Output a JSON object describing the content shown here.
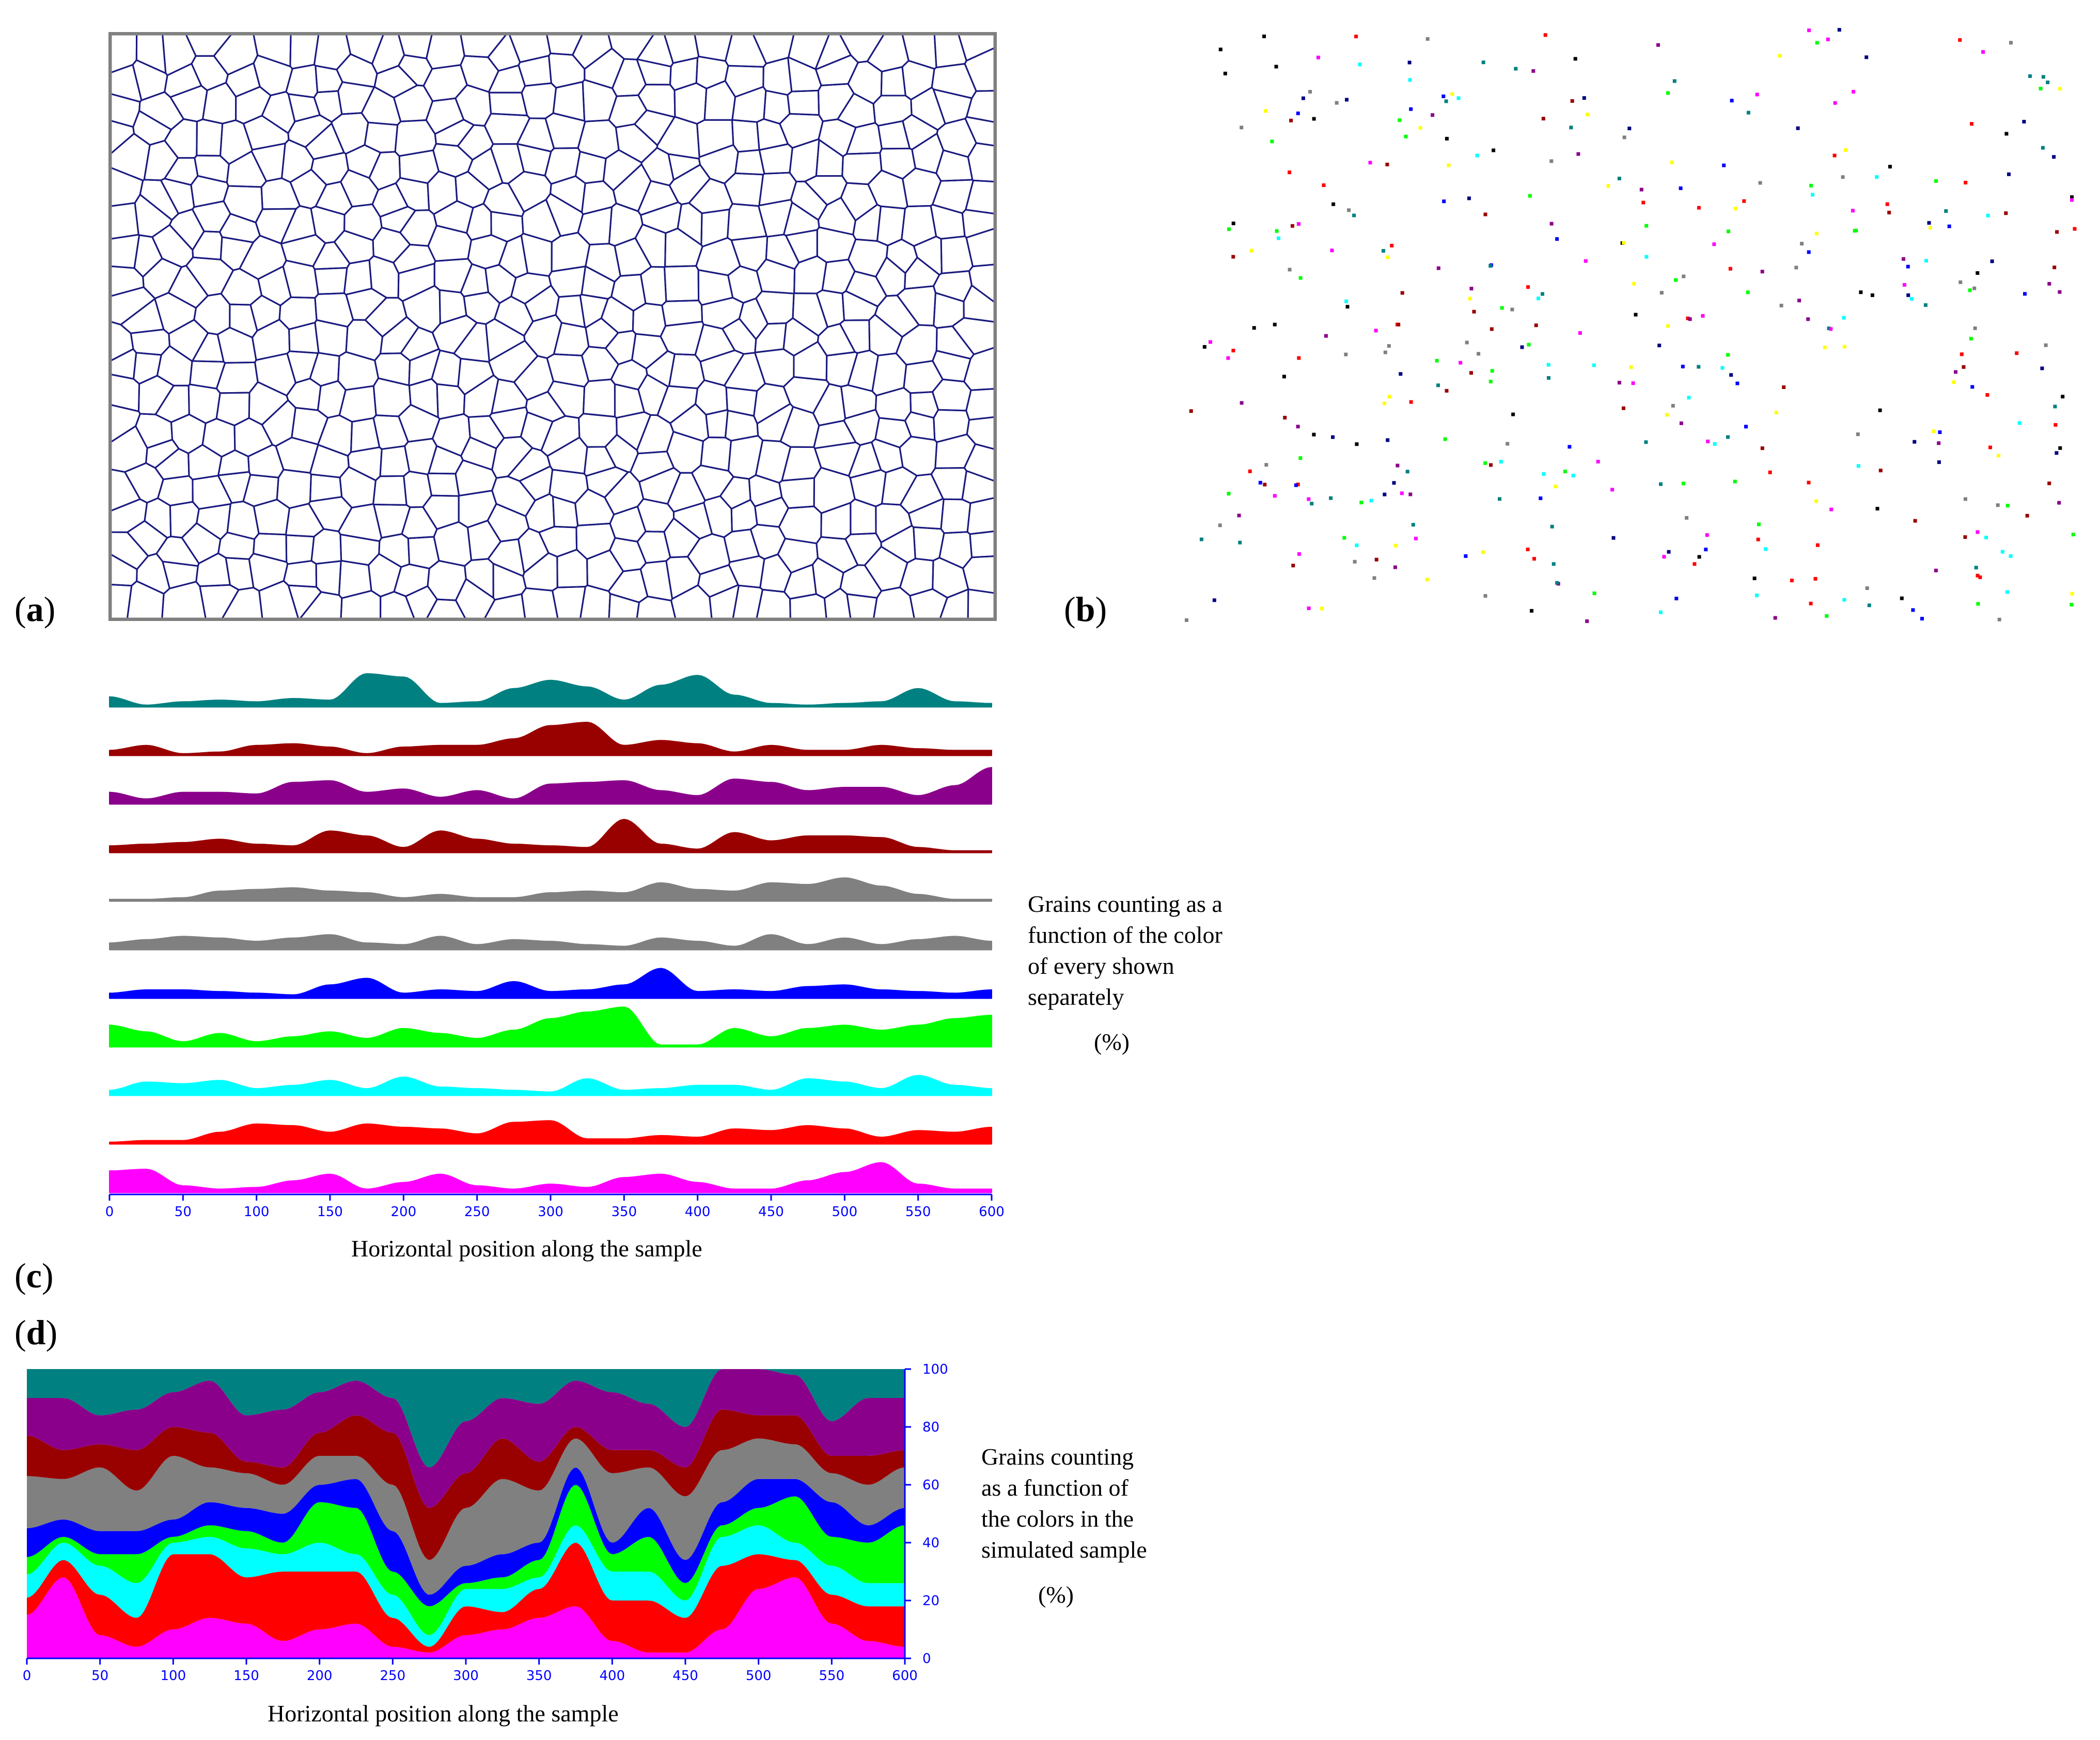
{
  "panels": {
    "a": "a",
    "b": "b",
    "c": "c",
    "d": "d"
  },
  "colors": {
    "boundary": "#1a1a80",
    "frame": "#808080",
    "tick": "#0000ff",
    "teal": "#008080",
    "darkred": "#990000",
    "purple": "#8b008b",
    "gray": "#808080",
    "blue": "#0000ff",
    "green": "#00ff00",
    "cyan": "#00ffff",
    "red": "#ff0000",
    "magenta": "#ff00ff"
  },
  "chart_data": [
    {
      "id": "c",
      "type": "area",
      "xlabel": "Horizontal position along the sample",
      "side_note": "Grains counting as a\nfunction of the color\nof every shown\nseparately",
      "unit": "(%)",
      "xlim": [
        0,
        600
      ],
      "x_ticks": [
        0,
        50,
        100,
        150,
        200,
        250,
        300,
        350,
        400,
        450,
        500,
        550,
        600
      ],
      "x": [
        0,
        25,
        50,
        75,
        100,
        125,
        150,
        175,
        200,
        225,
        250,
        275,
        300,
        325,
        350,
        375,
        400,
        425,
        450,
        475,
        500,
        525,
        550,
        575,
        600
      ],
      "series": [
        {
          "color": "teal",
          "values": [
            6,
            1,
            3,
            4,
            3,
            5,
            4,
            20,
            18,
            2,
            3,
            11,
            16,
            12,
            4,
            13,
            19,
            7,
            2,
            1,
            2,
            3,
            11,
            3,
            2
          ]
        },
        {
          "color": "darkred",
          "values": [
            3,
            6,
            1,
            2,
            6,
            7,
            5,
            1,
            5,
            6,
            6,
            10,
            18,
            20,
            6,
            9,
            7,
            2,
            6,
            3,
            3,
            6,
            4,
            3,
            3
          ]
        },
        {
          "color": "purple",
          "values": [
            7,
            3,
            7,
            7,
            6,
            13,
            14,
            7,
            9,
            4,
            8,
            3,
            12,
            13,
            14,
            8,
            5,
            15,
            13,
            8,
            10,
            10,
            5,
            11,
            22
          ]
        },
        {
          "color": "darkred",
          "values": [
            4,
            5,
            6,
            8,
            5,
            4,
            13,
            10,
            3,
            13,
            8,
            5,
            4,
            3,
            20,
            5,
            2,
            12,
            7,
            10,
            10,
            9,
            3,
            1,
            1
          ]
        },
        {
          "color": "gray",
          "values": [
            1,
            1,
            2,
            6,
            7,
            8,
            6,
            5,
            2,
            4,
            2,
            2,
            5,
            6,
            5,
            11,
            7,
            6,
            11,
            10,
            14,
            9,
            4,
            1,
            1
          ]
        },
        {
          "color": "gray",
          "values": [
            4,
            6,
            8,
            7,
            5,
            7,
            9,
            4,
            3,
            8,
            3,
            6,
            5,
            3,
            2,
            7,
            5,
            2,
            9,
            3,
            7,
            3,
            6,
            8,
            5
          ]
        },
        {
          "color": "blue",
          "values": [
            3,
            5,
            5,
            4,
            3,
            2,
            8,
            12,
            3,
            5,
            4,
            10,
            4,
            5,
            8,
            18,
            4,
            5,
            4,
            7,
            8,
            5,
            4,
            3,
            5
          ]
        },
        {
          "color": "green",
          "values": [
            13,
            9,
            3,
            8,
            3,
            6,
            9,
            5,
            11,
            8,
            5,
            10,
            17,
            21,
            24,
            1,
            1,
            11,
            6,
            11,
            13,
            10,
            13,
            17,
            19
          ]
        },
        {
          "color": "cyan",
          "values": [
            3,
            8,
            7,
            9,
            4,
            6,
            9,
            4,
            11,
            5,
            4,
            3,
            2,
            10,
            3,
            4,
            6,
            6,
            3,
            10,
            8,
            4,
            12,
            6,
            4
          ]
        },
        {
          "color": "red",
          "values": [
            1,
            2,
            2,
            7,
            12,
            11,
            7,
            12,
            10,
            9,
            6,
            13,
            14,
            3,
            3,
            5,
            4,
            9,
            8,
            11,
            9,
            4,
            8,
            7,
            10
          ]
        },
        {
          "color": "magenta",
          "values": [
            13,
            14,
            4,
            2,
            3,
            7,
            11,
            2,
            6,
            11,
            4,
            2,
            5,
            3,
            9,
            11,
            6,
            2,
            2,
            7,
            12,
            18,
            5,
            2,
            2
          ]
        }
      ]
    },
    {
      "id": "d",
      "type": "area",
      "stacked": true,
      "xlabel": "Horizontal position along the sample",
      "side_note": "Grains counting\nas a function of\nthe colors in the\nsimulated sample",
      "unit": "(%)",
      "xlim": [
        0,
        600
      ],
      "ylim": [
        0,
        100
      ],
      "x_ticks": [
        0,
        50,
        100,
        150,
        200,
        250,
        300,
        350,
        400,
        450,
        500,
        550,
        600
      ],
      "y_ticks": [
        0,
        20,
        40,
        60,
        80,
        100
      ],
      "x": [
        0,
        25,
        50,
        75,
        100,
        125,
        150,
        175,
        200,
        225,
        250,
        275,
        300,
        325,
        350,
        375,
        400,
        425,
        450,
        475,
        500,
        525,
        550,
        575,
        600
      ],
      "series_order_bottom_to_top": [
        "magenta",
        "red",
        "cyan",
        "green",
        "blue",
        "gray",
        "darkred",
        "purple",
        "teal"
      ],
      "series": [
        {
          "color": "magenta",
          "values": [
            15,
            28,
            8,
            4,
            10,
            14,
            12,
            6,
            10,
            12,
            4,
            2,
            8,
            10,
            14,
            18,
            6,
            2,
            2,
            10,
            24,
            28,
            12,
            6,
            4
          ]
        },
        {
          "color": "red",
          "values": [
            6,
            6,
            14,
            10,
            26,
            22,
            16,
            24,
            20,
            18,
            10,
            2,
            10,
            6,
            10,
            22,
            14,
            18,
            12,
            22,
            12,
            6,
            10,
            12,
            14
          ]
        },
        {
          "color": "cyan",
          "values": [
            8,
            6,
            10,
            12,
            4,
            6,
            10,
            6,
            10,
            6,
            8,
            4,
            6,
            8,
            4,
            6,
            10,
            10,
            6,
            10,
            10,
            6,
            10,
            8,
            8
          ]
        },
        {
          "color": "green",
          "values": [
            6,
            2,
            4,
            10,
            2,
            4,
            6,
            4,
            14,
            16,
            8,
            10,
            2,
            4,
            6,
            14,
            6,
            12,
            6,
            4,
            6,
            16,
            10,
            14,
            20
          ]
        },
        {
          "color": "blue",
          "values": [
            10,
            6,
            8,
            8,
            6,
            8,
            8,
            10,
            6,
            10,
            14,
            4,
            6,
            8,
            6,
            6,
            4,
            10,
            8,
            8,
            10,
            6,
            12,
            6,
            6
          ]
        },
        {
          "color": "gray",
          "values": [
            18,
            14,
            22,
            14,
            22,
            12,
            12,
            10,
            10,
            8,
            16,
            12,
            20,
            26,
            18,
            10,
            24,
            14,
            22,
            18,
            14,
            12,
            10,
            14,
            14
          ]
        },
        {
          "color": "darkred",
          "values": [
            14,
            10,
            8,
            14,
            10,
            12,
            4,
            6,
            8,
            14,
            18,
            18,
            12,
            14,
            10,
            4,
            8,
            6,
            10,
            14,
            8,
            10,
            6,
            10,
            6
          ]
        },
        {
          "color": "purple",
          "values": [
            13,
            18,
            10,
            14,
            12,
            18,
            16,
            20,
            14,
            12,
            12,
            14,
            18,
            14,
            20,
            16,
            20,
            16,
            14,
            14,
            16,
            14,
            12,
            20,
            18
          ]
        },
        {
          "color": "teal",
          "values": [
            10,
            10,
            16,
            14,
            8,
            4,
            16,
            14,
            8,
            4,
            10,
            34,
            18,
            10,
            12,
            4,
            8,
            12,
            20,
            0,
            0,
            2,
            18,
            10,
            10
          ]
        }
      ]
    }
  ]
}
